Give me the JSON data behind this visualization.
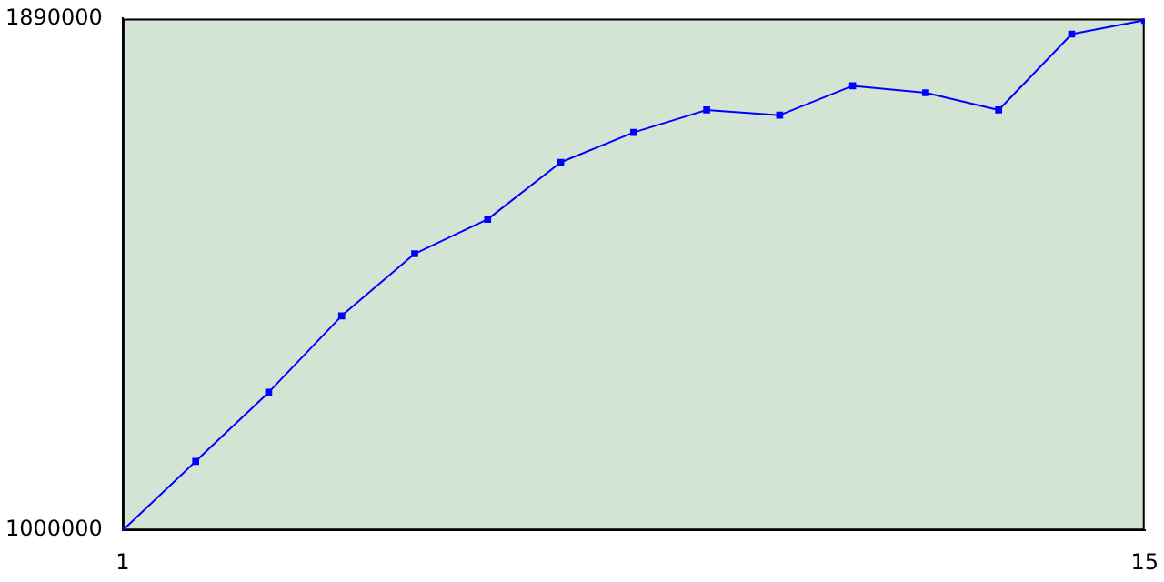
{
  "chart_data": {
    "type": "line",
    "x": [
      1,
      2,
      3,
      4,
      5,
      6,
      7,
      8,
      9,
      10,
      11,
      12,
      13,
      14,
      15
    ],
    "series": [
      {
        "color": "#0000ff",
        "values": [
          1000000,
          1120000,
          1240000,
          1373000,
          1481000,
          1541000,
          1640000,
          1692000,
          1731000,
          1722000,
          1773000,
          1761000,
          1731000,
          1863000,
          1887000
        ]
      }
    ],
    "xlim": [
      1,
      15
    ],
    "xticks": [
      1,
      15
    ],
    "ylim": [
      1000000,
      1890000
    ],
    "yticks": [
      1000000,
      1890000
    ],
    "grid": false,
    "legend": false,
    "marker": "square",
    "line_style": "solid"
  }
}
